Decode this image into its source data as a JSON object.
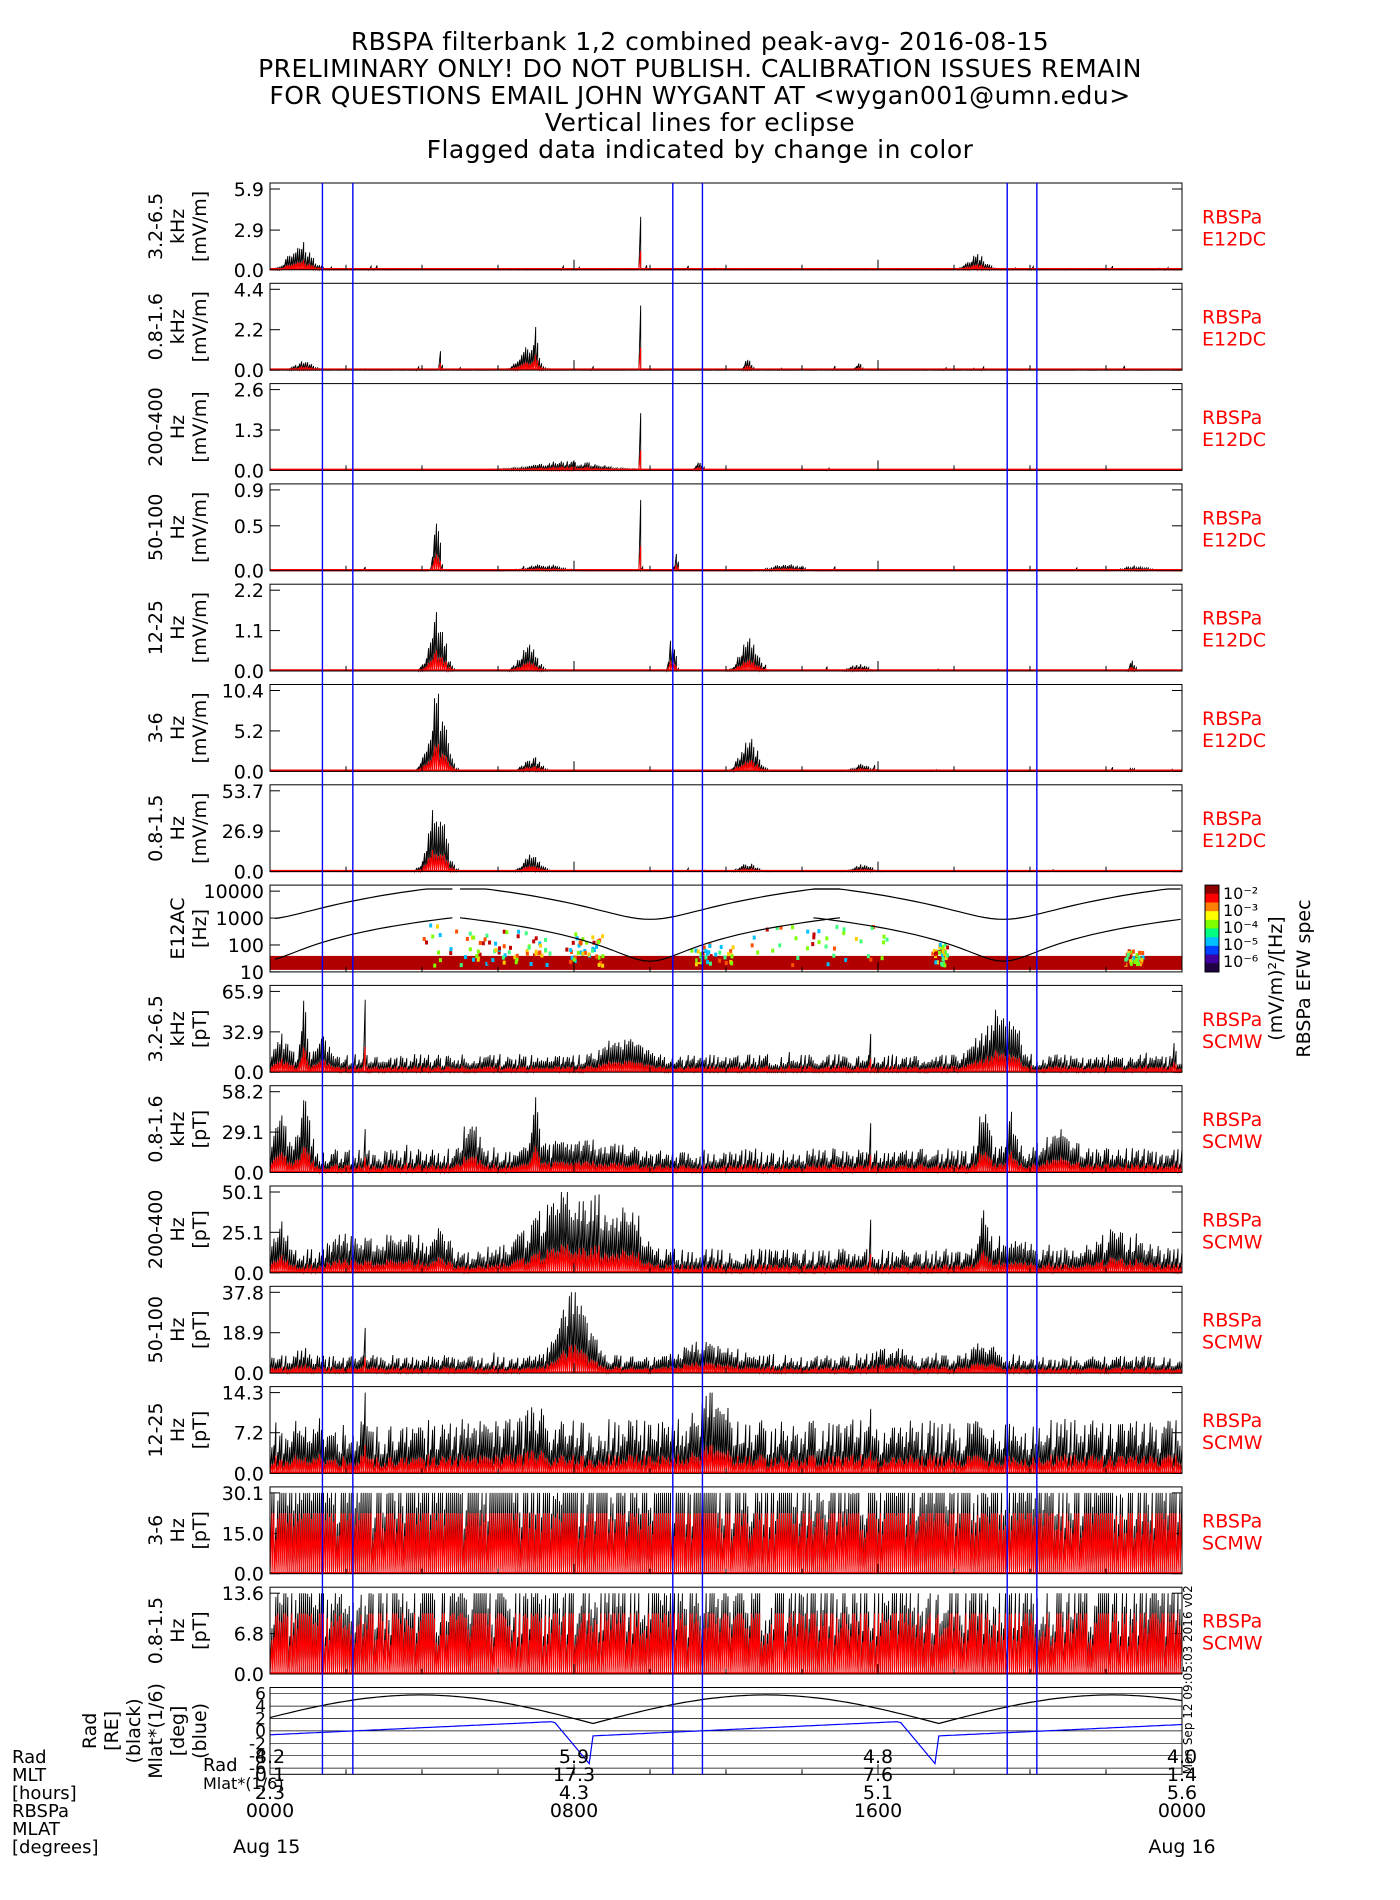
{
  "header": {
    "line1": "RBSPA filterbank 1,2 combined peak-avg- 2016-08-15",
    "line2": "PRELIMINARY ONLY! DO NOT PUBLISH. CALIBRATION ISSUES REMAIN",
    "line3": "FOR QUESTIONS EMAIL JOHN WYGANT AT <wygan001@umn.edu>",
    "line4": "Vertical lines for eclipse",
    "line5": "Flagged data indicated by change in color"
  },
  "colors": {
    "peak": "#000000",
    "avg": "#ff0000",
    "eclipse": "#0000ff",
    "spec_bg": "#ffffff",
    "spec_base": "#b00000"
  },
  "chart_data": {
    "type": "line",
    "x_range_hours": [
      0,
      24
    ],
    "eclipse_lines_hours": [
      1.38,
      2.18,
      10.6,
      11.38,
      19.4,
      20.18
    ],
    "panels": [
      {
        "label": "3.2-6.5 kHz [mV/m]",
        "ylabel": [
          "3.2-6.5",
          "kHz",
          "[mV/m]"
        ],
        "ticks": [
          "5.9",
          "2.9",
          "0.0"
        ],
        "ymax": 5.9,
        "tag": [
          "RBSPa",
          "E12DC"
        ],
        "bursts": [
          [
            0.8,
            2.4,
            0.35
          ],
          [
            9.75,
            5.9,
            0.02
          ],
          [
            18.6,
            1.2,
            0.3
          ]
        ],
        "baseline": 0.08,
        "noise": 0.2
      },
      {
        "label": "0.8-1.6 kHz [mV/m]",
        "ylabel": [
          "0.8-1.6",
          "kHz",
          "[mV/m]"
        ],
        "ticks": [
          "4.4",
          "2.2",
          "0.0"
        ],
        "ymax": 4.4,
        "tag": [
          "RBSPa",
          "E12DC"
        ],
        "bursts": [
          [
            0.9,
            0.5,
            0.3
          ],
          [
            4.5,
            1.5,
            0.03
          ],
          [
            6.8,
            1.7,
            0.3
          ],
          [
            7.0,
            2.2,
            0.05
          ],
          [
            9.75,
            4.4,
            0.02
          ],
          [
            12.6,
            0.9,
            0.1
          ],
          [
            15.5,
            0.4,
            0.1
          ]
        ],
        "baseline": 0.04,
        "noise": 0.15
      },
      {
        "label": "200-400 Hz [mV/m]",
        "ylabel": [
          "200-400",
          "Hz",
          "[mV/m]"
        ],
        "ticks": [
          "2.6",
          "1.3",
          "0.0"
        ],
        "ymax": 2.6,
        "tag": [
          "RBSPa",
          "E12DC"
        ],
        "bursts": [
          [
            7.8,
            0.3,
            1.2
          ],
          [
            9.75,
            2.6,
            0.02
          ],
          [
            11.3,
            0.4,
            0.1
          ]
        ],
        "baseline": 0.06,
        "noise": 0.1
      },
      {
        "label": "50-100 Hz [mV/m]",
        "ylabel": [
          "50-100",
          "Hz",
          "[mV/m]"
        ],
        "ticks": [
          "0.9",
          "0.5",
          "0.0"
        ],
        "ymax": 0.9,
        "tag": [
          "RBSPa",
          "E12DC"
        ],
        "bursts": [
          [
            4.4,
            0.7,
            0.1
          ],
          [
            7.2,
            0.08,
            0.6
          ],
          [
            9.75,
            0.9,
            0.02
          ],
          [
            10.7,
            0.25,
            0.05
          ],
          [
            13.6,
            0.08,
            0.5
          ],
          [
            22.8,
            0.06,
            0.4
          ]
        ],
        "baseline": 0.0,
        "noise": 0.1
      },
      {
        "label": "12-25 Hz [mV/m]",
        "ylabel": [
          "12-25",
          "Hz",
          "[mV/m]"
        ],
        "ticks": [
          "2.2",
          "1.1",
          "0.0"
        ],
        "ymax": 2.2,
        "tag": [
          "RBSPa",
          "E12DC"
        ],
        "bursts": [
          [
            4.4,
            2.0,
            0.25
          ],
          [
            6.8,
            0.8,
            0.3
          ],
          [
            10.6,
            1.2,
            0.1
          ],
          [
            12.6,
            1.0,
            0.3
          ],
          [
            15.5,
            0.2,
            0.3
          ],
          [
            22.7,
            0.3,
            0.1
          ]
        ],
        "baseline": 0.0,
        "noise": 0.1
      },
      {
        "label": "3-6 Hz [mV/m]",
        "ylabel": [
          "3-6",
          "Hz",
          "[mV/m]"
        ],
        "ticks": [
          "10.4",
          "5.2",
          "0.0"
        ],
        "ymax": 10.4,
        "tag": [
          "RBSPa",
          "E12DC"
        ],
        "bursts": [
          [
            4.4,
            10.4,
            0.3
          ],
          [
            6.9,
            2.0,
            0.3
          ],
          [
            12.6,
            5.0,
            0.3
          ],
          [
            15.6,
            1.0,
            0.3
          ],
          [
            22.7,
            0.5,
            0.1
          ]
        ],
        "baseline": 0.0,
        "noise": 0.1
      },
      {
        "label": "0.8-1.5 Hz [mV/m]",
        "ylabel": [
          "0.8-1.5",
          "Hz",
          "[mV/m]"
        ],
        "ticks": [
          "53.7",
          "26.9",
          "0.0"
        ],
        "ymax": 53.7,
        "tag": [
          "RBSPa",
          "E12DC"
        ],
        "bursts": [
          [
            4.4,
            53.7,
            0.3
          ],
          [
            6.9,
            12.0,
            0.3
          ],
          [
            12.6,
            6.0,
            0.3
          ],
          [
            15.6,
            5.0,
            0.3
          ]
        ],
        "baseline": 0.0,
        "noise": 0.1
      },
      {
        "label": "E12AC [Hz]",
        "ylabel": [
          "E12AC",
          "[Hz]"
        ],
        "ticks": [
          "10000",
          "1000",
          "100",
          "10"
        ],
        "spectrogram": true,
        "colorbar_ticks": [
          "10⁻²",
          "10⁻³",
          "10⁻⁴",
          "10⁻⁵",
          "10⁻⁶"
        ],
        "colorbar_unit": "(mV/m)²/[Hz]",
        "colorbar_title": "RBSPa EFW spec"
      },
      {
        "label": "3.2-6.5 kHz [pT]",
        "ylabel": [
          "3.2-6.5",
          "kHz",
          "[pT]"
        ],
        "ticks": [
          "65.9",
          "32.9",
          "0.0"
        ],
        "ymax": 65.9,
        "tag": [
          "RBSPa",
          "SCMW"
        ],
        "bursts": [
          [
            0.3,
            20,
            0.3
          ],
          [
            0.9,
            50,
            0.1
          ],
          [
            1.4,
            25,
            0.2
          ],
          [
            2.5,
            60,
            0.02
          ],
          [
            9.3,
            20,
            0.6
          ],
          [
            15.8,
            60,
            0.02
          ],
          [
            19.0,
            35,
            0.5
          ],
          [
            19.5,
            30,
            0.3
          ],
          [
            23.8,
            15,
            0.05
          ]
        ],
        "baseline": 1.5,
        "noise": 0.4
      },
      {
        "label": "0.8-1.6 kHz [pT]",
        "ylabel": [
          "0.8-1.6",
          "kHz",
          "[pT]"
        ],
        "ticks": [
          "58.2",
          "29.1",
          "0.0"
        ],
        "ymax": 58.2,
        "tag": [
          "RBSPa",
          "SCMW"
        ],
        "bursts": [
          [
            0.3,
            40,
            0.2
          ],
          [
            0.9,
            45,
            0.2
          ],
          [
            2.5,
            50,
            0.03
          ],
          [
            5.3,
            25,
            0.3
          ],
          [
            7.0,
            50,
            0.1
          ],
          [
            8.0,
            10,
            1.2
          ],
          [
            15.8,
            50,
            0.02
          ],
          [
            18.8,
            40,
            0.2
          ],
          [
            19.5,
            30,
            0.2
          ],
          [
            20.8,
            20,
            0.5
          ]
        ],
        "baseline": 2.0,
        "noise": 0.5
      },
      {
        "label": "200-400 Hz [pT]",
        "ylabel": [
          "200-400",
          "Hz",
          "[pT]"
        ],
        "ticks": [
          "50.1",
          "25.1",
          "0.0"
        ],
        "ymax": 50.1,
        "tag": [
          "RBSPa",
          "SCMW"
        ],
        "bursts": [
          [
            0.3,
            25,
            0.2
          ],
          [
            2.0,
            10,
            0.5
          ],
          [
            3.3,
            12,
            1.0
          ],
          [
            4.5,
            15,
            0.2
          ],
          [
            8.0,
            45,
            1.3
          ],
          [
            9.5,
            20,
            0.4
          ],
          [
            15.8,
            50,
            0.02
          ],
          [
            18.8,
            30,
            0.1
          ],
          [
            19.3,
            10,
            0.8
          ],
          [
            22.3,
            15,
            0.8
          ]
        ],
        "baseline": 2.0,
        "noise": 0.4
      },
      {
        "label": "50-100 Hz [pT]",
        "ylabel": [
          "50-100",
          "Hz",
          "[pT]"
        ],
        "ticks": [
          "37.8",
          "18.9",
          "0.0"
        ],
        "ymax": 37.8,
        "tag": [
          "RBSPa",
          "SCMW"
        ],
        "bursts": [
          [
            0.9,
            6,
            0.2
          ],
          [
            2.5,
            37,
            0.02
          ],
          [
            8.0,
            35,
            0.5
          ],
          [
            11.6,
            9,
            0.8
          ],
          [
            16.3,
            5,
            0.5
          ],
          [
            18.8,
            8,
            0.5
          ]
        ],
        "baseline": 1.5,
        "noise": 0.3
      },
      {
        "label": "12-25 Hz [pT]",
        "ylabel": [
          "12-25",
          "Hz",
          "[pT]"
        ],
        "ticks": [
          "14.3",
          "7.2",
          "0.0"
        ],
        "ymax": 14.3,
        "tag": [
          "RBSPa",
          "SCMW"
        ],
        "bursts": [
          [
            2.5,
            14.3,
            0.02
          ],
          [
            7.0,
            3,
            0.3
          ],
          [
            11.6,
            8,
            0.5
          ],
          [
            15.8,
            4,
            0.02
          ],
          [
            18.8,
            6,
            0.02
          ]
        ],
        "baseline": 4.5,
        "noise": 0.5
      },
      {
        "label": "3-6 Hz [pT]",
        "ylabel": [
          "3-6",
          "Hz",
          "[pT]"
        ],
        "ticks": [
          "30.1",
          "15.0",
          "0.0"
        ],
        "ymax": 30.1,
        "tag": [
          "RBSPa",
          "SCMW"
        ],
        "bursts": [
          [
            2.5,
            30,
            0.02
          ],
          [
            15.8,
            25,
            0.02
          ]
        ],
        "baseline": 11.0,
        "noise": 0.2
      },
      {
        "label": "0.8-1.5 Hz [pT]",
        "ylabel": [
          "0.8-1.5",
          "Hz",
          "[pT]"
        ],
        "ticks": [
          "13.6",
          "6.8",
          "0.0"
        ],
        "ymax": 13.6,
        "tag": [
          "RBSPa",
          "SCMW"
        ],
        "bursts": [],
        "baseline": 9.0,
        "noise": 0.1
      },
      {
        "label": "Rad (black) Mlat*(1/6) (blue)",
        "ylabel": [
          "Rad",
          "[RE]",
          "(black)",
          "Mlat*(1/6)",
          "[deg]",
          "(blue)"
        ],
        "ticks": [
          "6",
          "4",
          "2",
          "0",
          "-2",
          "-4",
          "-6"
        ],
        "ephemeris": true
      }
    ],
    "x_axis": {
      "row_labels": [
        "Rad",
        "MLT",
        "[hours]",
        "RBSPa",
        "MLAT",
        "[degrees]"
      ],
      "columns": [
        {
          "hour": 0,
          "values": [
            "8.2",
            "0.1",
            "2.3",
            "0000",
            "Aug 15"
          ]
        },
        {
          "hour": 8,
          "values": [
            "5.9",
            "17.3",
            "4.3",
            "0800",
            ""
          ]
        },
        {
          "hour": 16,
          "values": [
            "4.8",
            "7.6",
            "5.1",
            "1600",
            ""
          ]
        },
        {
          "hour": 24,
          "values": [
            "4.0",
            "1.4",
            "5.6",
            "0000",
            "Aug 16"
          ]
        }
      ]
    },
    "side_stamp": "Mon Sep 12 09:05:03 2016 v02"
  }
}
